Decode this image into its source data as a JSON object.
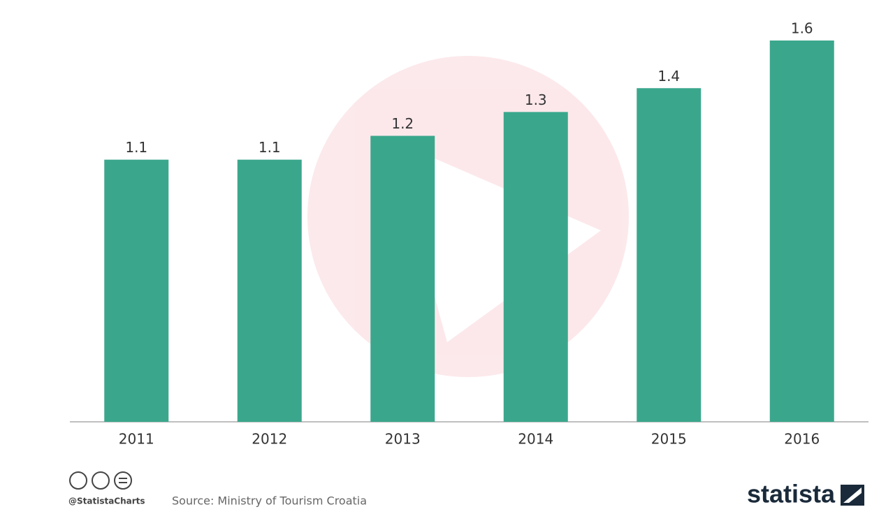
{
  "chart_data": {
    "type": "bar",
    "categories": [
      "2011",
      "2012",
      "2013",
      "2014",
      "2015",
      "2016"
    ],
    "values": [
      1.1,
      1.1,
      1.2,
      1.3,
      1.4,
      1.6
    ],
    "color": "#3aa78c"
  },
  "footer": {
    "handle": "@StatistaCharts",
    "source": "Source: Ministry of Tourism Croatia",
    "brand": "statista"
  }
}
